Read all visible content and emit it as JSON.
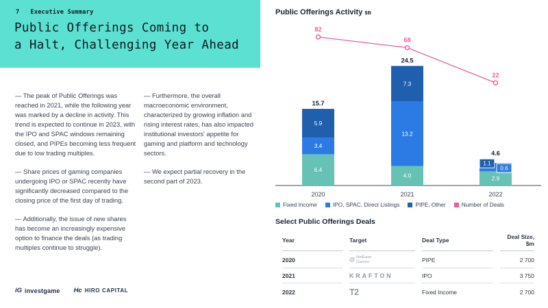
{
  "slide": {
    "kicker_number": "7",
    "kicker_label": "Executive Summary",
    "title_line1": "Public Offerings Coming to",
    "title_line2": "a Halt, Challenging Year Ahead"
  },
  "body": {
    "col1": [
      "— The peak of Public Offerings was reached in 2021, while the following year was marked by a decline in activity. This trend is expected to continue in 2023, with the IPO and SPAC windows remaining closed, and PIPEs becoming less frequent due to low trading multiples.",
      "— Share prices of gaming companies undergoing IPO or SPAC recently have significantly decreased compared to the closing price of the first day of trading.",
      "— Additionally, the issue of new shares has become an increasingly expensive option to finance the deals (as trading multiples continue to struggle)."
    ],
    "col2": [
      "— Furthermore, the overall macroeconomic environment, characterized by growing inflation and rising interest rates, has also impacted institutional investors' appetite for gaming and platform and technology sectors.",
      "— We expect partial recovery in the second part of 2023."
    ]
  },
  "chart_data": {
    "type": "bar",
    "title": "Public Offerings Activity",
    "title_unit": "$B",
    "categories": [
      "2020",
      "2021",
      "2022"
    ],
    "series": [
      {
        "name": "Fixed Income",
        "color": "#66C2B4",
        "values": [
          6.4,
          4.0,
          2.9
        ]
      },
      {
        "name": "IPO, SPAC, Direct Listings",
        "color": "#2C7BE5",
        "values": [
          3.4,
          13.2,
          0.6
        ]
      },
      {
        "name": "PIPE, Other",
        "color": "#1F5FAD",
        "values": [
          5.9,
          7.3,
          1.1
        ]
      }
    ],
    "totals": [
      15.7,
      24.5,
      4.6
    ],
    "line_series": {
      "name": "Number of Deals",
      "color": "#EF5B9C",
      "values": [
        82,
        68,
        22
      ]
    },
    "xlabel": "",
    "ylabel": "",
    "ylim": [
      0,
      26
    ],
    "grid": false,
    "legend_position": "bottom"
  },
  "deals_table": {
    "title": "Select Public Offerings Deals",
    "columns": [
      "Year",
      "Target",
      "Deal Type",
      "Deal Size, $m"
    ],
    "rows": [
      {
        "year": "2020",
        "target": "NetEase Games",
        "target_style": "netease",
        "deal_type": "PIPE",
        "deal_size": "2 700"
      },
      {
        "year": "2021",
        "target": "KRAFTON",
        "target_style": "krafton",
        "deal_type": "IPO",
        "deal_size": "3 750"
      },
      {
        "year": "2022",
        "target": "T2",
        "target_style": "t2",
        "deal_type": "Fixed Income",
        "deal_size": "2 700"
      }
    ]
  },
  "footer": {
    "logo1_mark": "iG",
    "logo1_text": "investgame",
    "logo2_mark": "Hc",
    "logo2_text": "HIRO CAPITAL"
  },
  "colors": {
    "header_bg": "#5CE0D2",
    "fixed_income": "#66C2B4",
    "ipo_spac": "#2C7BE5",
    "pipe_other": "#1F5FAD",
    "deals_line": "#EF5B9C",
    "axis": "#9FA5AA",
    "footer_navy": "#1C2B4A"
  }
}
